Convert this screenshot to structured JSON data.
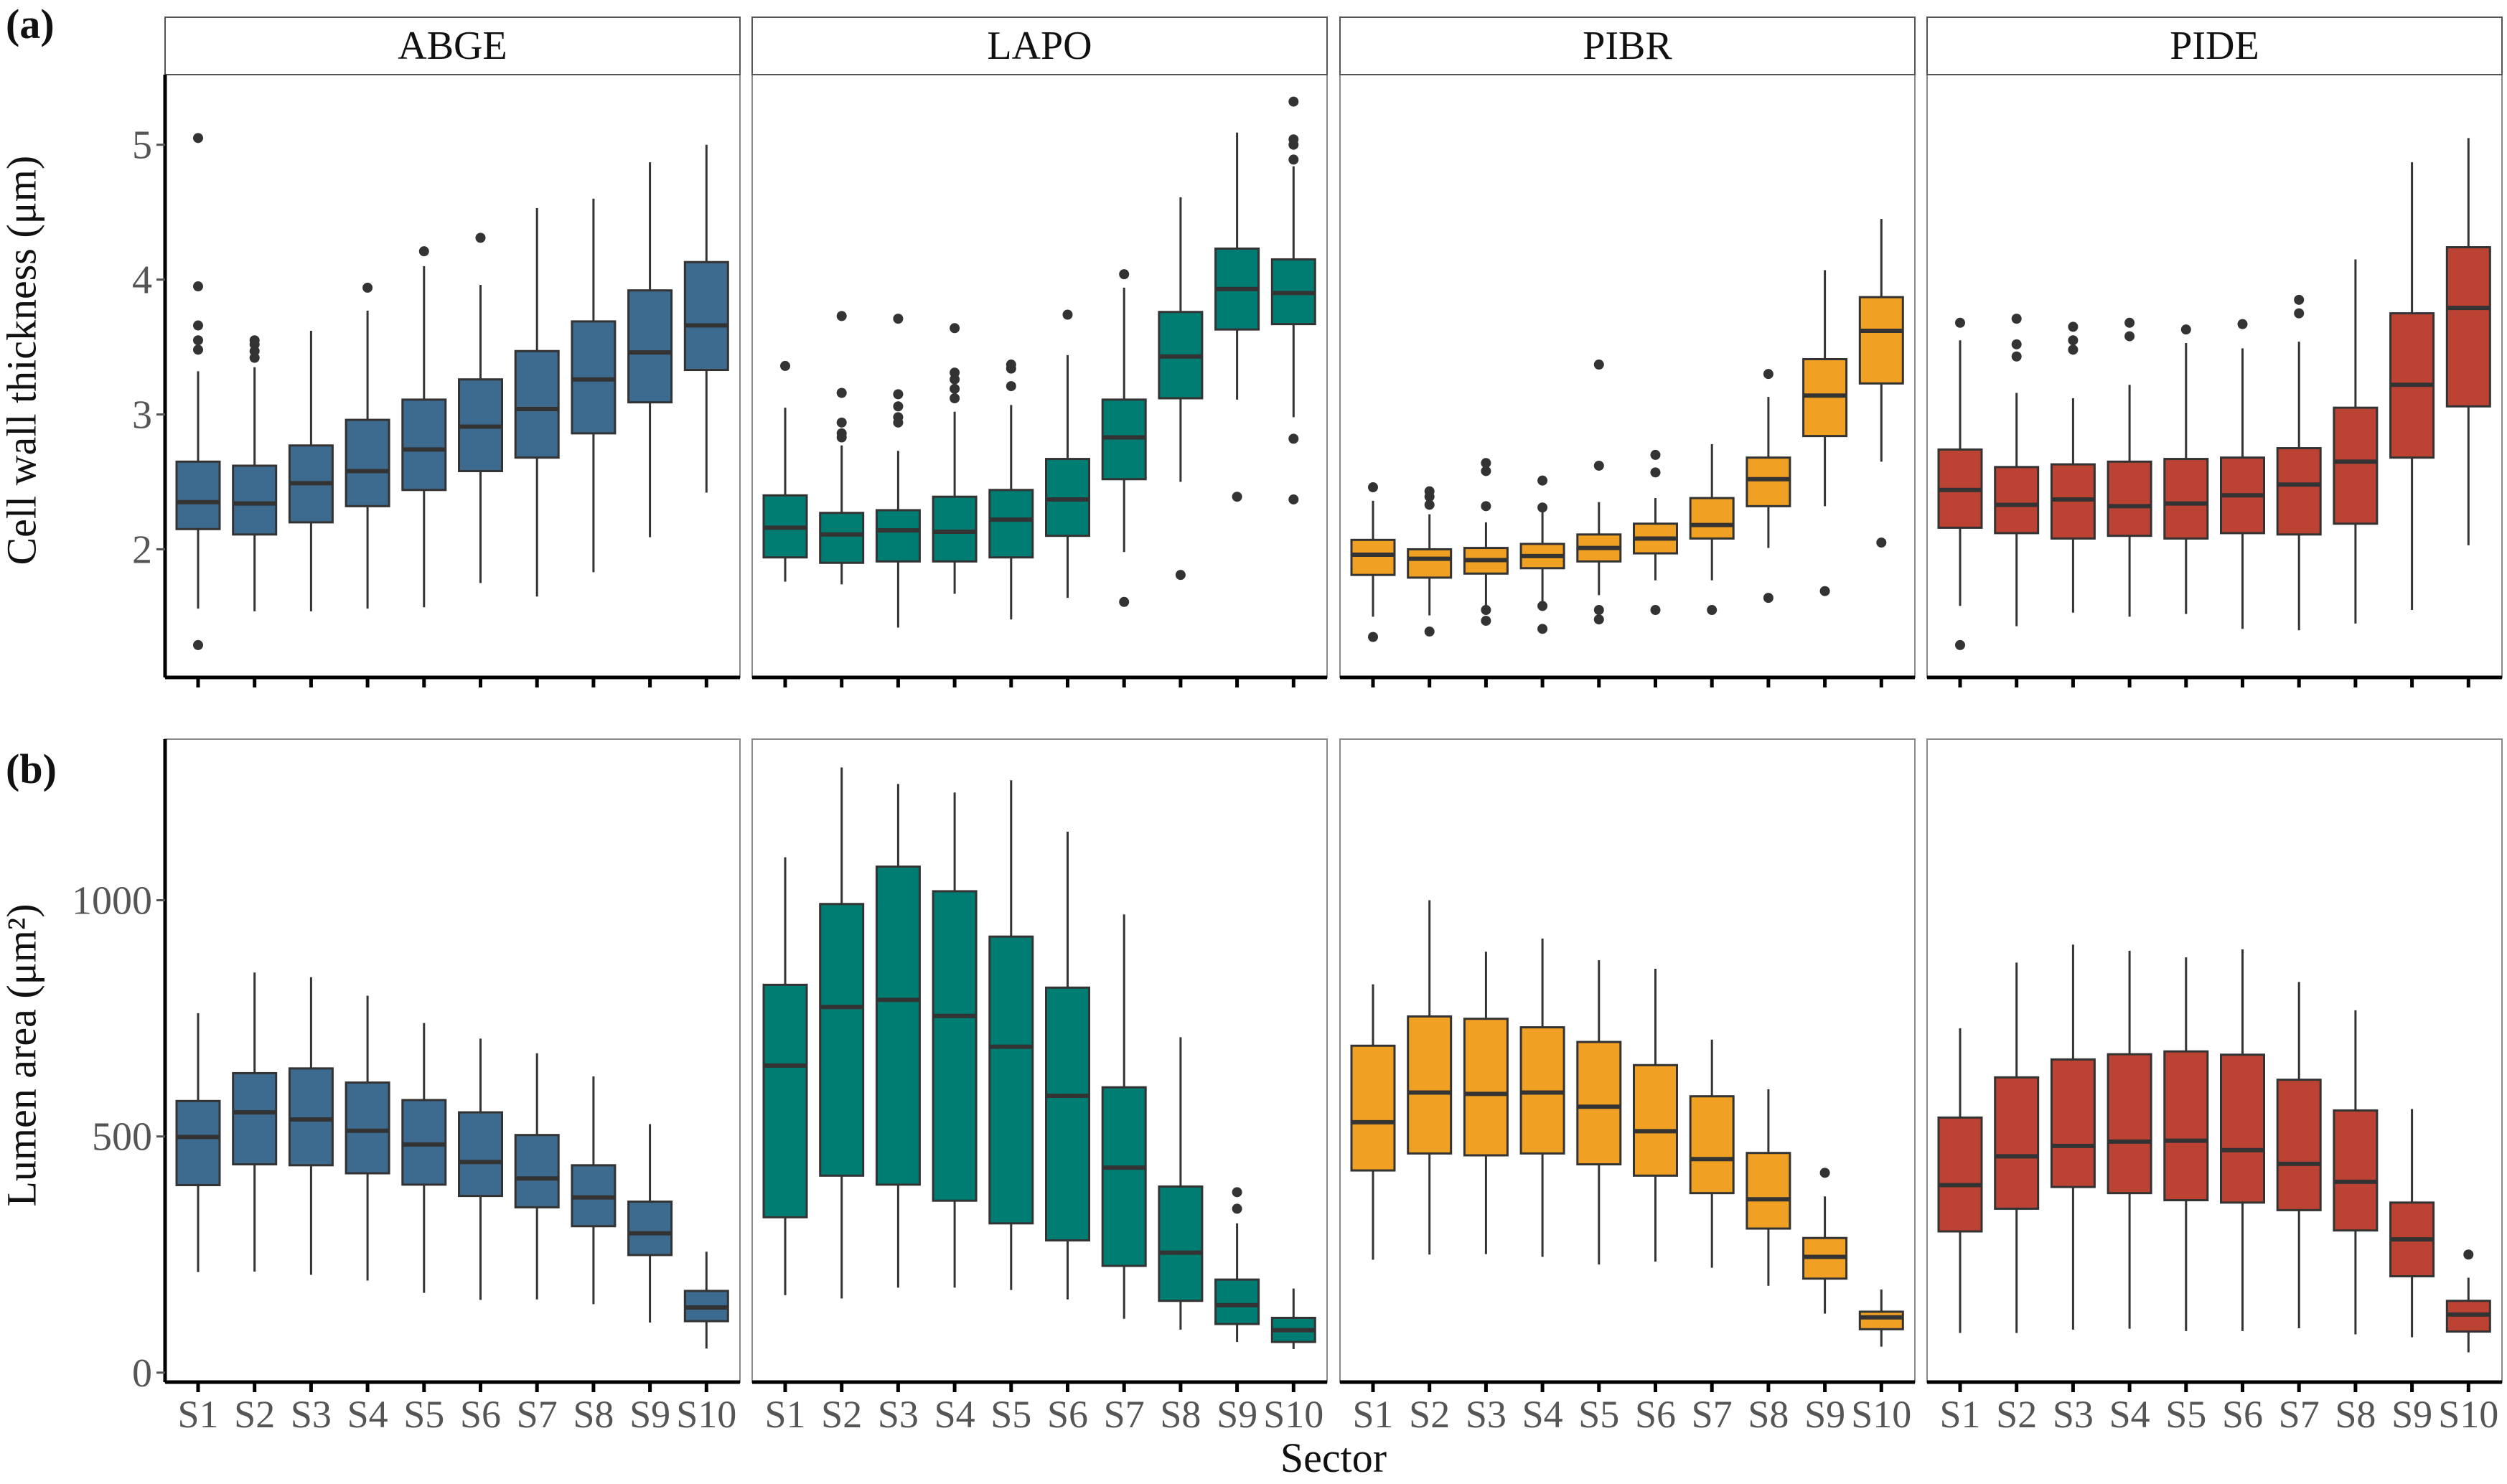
{
  "figure": {
    "panel_labels": [
      "(a)",
      "(b)"
    ],
    "xlabel": "Sector",
    "facets": [
      "ABGE",
      "LAPO",
      "PIBR",
      "PIDE"
    ],
    "colors": {
      "ABGE": "#3D6A8F",
      "LAPO": "#007D72",
      "PIBR": "#F0A023",
      "PIDE": "#BC4334",
      "outline": "#333333",
      "outlier": "#333333"
    }
  },
  "chart_data": [
    {
      "type": "boxplot",
      "panel": "(a)",
      "title": "",
      "xlabel": "",
      "ylabel": "Cell wall thickness (μm)",
      "ylim": [
        1.05,
        5.52
      ],
      "yticks": [
        2,
        3,
        4,
        5
      ],
      "categories": [
        "S1",
        "S2",
        "S3",
        "S4",
        "S5",
        "S6",
        "S7",
        "S8",
        "S9",
        "S10"
      ],
      "facets": [
        {
          "name": "ABGE",
          "boxes": [
            {
              "q1": 2.15,
              "median": 2.35,
              "q3": 2.65,
              "lo": 1.56,
              "hi": 3.32,
              "outliers": [
                5.05,
                3.95,
                3.66,
                3.55,
                3.48,
                1.29
              ]
            },
            {
              "q1": 2.11,
              "median": 2.34,
              "q3": 2.62,
              "lo": 1.54,
              "hi": 3.35,
              "outliers": [
                3.42,
                3.47,
                3.52,
                3.55
              ]
            },
            {
              "q1": 2.2,
              "median": 2.49,
              "q3": 2.77,
              "lo": 1.54,
              "hi": 3.62,
              "outliers": []
            },
            {
              "q1": 2.32,
              "median": 2.58,
              "q3": 2.96,
              "lo": 1.56,
              "hi": 3.77,
              "outliers": [
                3.94
              ]
            },
            {
              "q1": 2.44,
              "median": 2.74,
              "q3": 3.11,
              "lo": 1.57,
              "hi": 4.1,
              "outliers": [
                4.21
              ]
            },
            {
              "q1": 2.58,
              "median": 2.91,
              "q3": 3.26,
              "lo": 1.75,
              "hi": 3.96,
              "outliers": [
                4.31
              ]
            },
            {
              "q1": 2.68,
              "median": 3.04,
              "q3": 3.47,
              "lo": 1.65,
              "hi": 4.53,
              "outliers": []
            },
            {
              "q1": 2.86,
              "median": 3.26,
              "q3": 3.69,
              "lo": 1.83,
              "hi": 4.6,
              "outliers": []
            },
            {
              "q1": 3.09,
              "median": 3.46,
              "q3": 3.92,
              "lo": 2.09,
              "hi": 4.87,
              "outliers": []
            },
            {
              "q1": 3.33,
              "median": 3.66,
              "q3": 4.13,
              "lo": 2.42,
              "hi": 5.0,
              "outliers": []
            }
          ]
        },
        {
          "name": "LAPO",
          "boxes": [
            {
              "q1": 1.94,
              "median": 2.16,
              "q3": 2.4,
              "lo": 1.76,
              "hi": 3.05,
              "outliers": [
                3.36
              ]
            },
            {
              "q1": 1.9,
              "median": 2.11,
              "q3": 2.27,
              "lo": 1.74,
              "hi": 2.77,
              "outliers": [
                3.73,
                3.16,
                2.94,
                2.86,
                2.83
              ]
            },
            {
              "q1": 1.91,
              "median": 2.14,
              "q3": 2.29,
              "lo": 1.42,
              "hi": 2.73,
              "outliers": [
                3.71,
                3.15,
                3.06,
                2.98,
                2.94
              ]
            },
            {
              "q1": 1.91,
              "median": 2.13,
              "q3": 2.39,
              "lo": 1.67,
              "hi": 3.02,
              "outliers": [
                3.64,
                3.31,
                3.26,
                3.19,
                3.12
              ]
            },
            {
              "q1": 1.94,
              "median": 2.22,
              "q3": 2.44,
              "lo": 1.48,
              "hi": 3.07,
              "outliers": [
                3.37,
                3.34,
                3.21
              ]
            },
            {
              "q1": 2.1,
              "median": 2.37,
              "q3": 2.67,
              "lo": 1.64,
              "hi": 3.44,
              "outliers": [
                3.74
              ]
            },
            {
              "q1": 2.52,
              "median": 2.83,
              "q3": 3.11,
              "lo": 1.98,
              "hi": 3.94,
              "outliers": [
                4.04,
                1.61
              ]
            },
            {
              "q1": 3.12,
              "median": 3.43,
              "q3": 3.76,
              "lo": 2.5,
              "hi": 4.61,
              "outliers": [
                1.81
              ]
            },
            {
              "q1": 3.63,
              "median": 3.93,
              "q3": 4.23,
              "lo": 3.11,
              "hi": 5.09,
              "outliers": [
                2.39
              ]
            },
            {
              "q1": 3.67,
              "median": 3.9,
              "q3": 4.15,
              "lo": 2.98,
              "hi": 4.84,
              "outliers": [
                5.32,
                5.04,
                5.0,
                4.89,
                2.82,
                2.37
              ]
            }
          ]
        },
        {
          "name": "PIBR",
          "boxes": [
            {
              "q1": 1.81,
              "median": 1.96,
              "q3": 2.07,
              "lo": 1.5,
              "hi": 2.36,
              "outliers": [
                2.46,
                1.35
              ]
            },
            {
              "q1": 1.79,
              "median": 1.93,
              "q3": 2.0,
              "lo": 1.51,
              "hi": 2.26,
              "outliers": [
                2.43,
                2.39,
                2.33,
                1.39
              ]
            },
            {
              "q1": 1.82,
              "median": 1.92,
              "q3": 2.01,
              "lo": 1.57,
              "hi": 2.2,
              "outliers": [
                2.64,
                2.58,
                2.32,
                1.55,
                1.47
              ]
            },
            {
              "q1": 1.86,
              "median": 1.95,
              "q3": 2.04,
              "lo": 1.59,
              "hi": 2.28,
              "outliers": [
                2.51,
                2.31,
                1.58,
                1.41
              ]
            },
            {
              "q1": 1.91,
              "median": 2.01,
              "q3": 2.11,
              "lo": 1.66,
              "hi": 2.35,
              "outliers": [
                3.37,
                2.62,
                1.55,
                1.48
              ]
            },
            {
              "q1": 1.97,
              "median": 2.08,
              "q3": 2.19,
              "lo": 1.77,
              "hi": 2.38,
              "outliers": [
                2.7,
                2.57,
                1.55
              ]
            },
            {
              "q1": 2.08,
              "median": 2.18,
              "q3": 2.38,
              "lo": 1.77,
              "hi": 2.78,
              "outliers": [
                1.55
              ]
            },
            {
              "q1": 2.32,
              "median": 2.52,
              "q3": 2.68,
              "lo": 2.01,
              "hi": 3.13,
              "outliers": [
                3.3,
                1.64
              ]
            },
            {
              "q1": 2.84,
              "median": 3.14,
              "q3": 3.41,
              "lo": 2.32,
              "hi": 4.07,
              "outliers": [
                1.69
              ]
            },
            {
              "q1": 3.23,
              "median": 3.62,
              "q3": 3.87,
              "lo": 2.65,
              "hi": 4.45,
              "outliers": [
                2.05
              ]
            }
          ]
        },
        {
          "name": "PIDE",
          "boxes": [
            {
              "q1": 2.16,
              "median": 2.44,
              "q3": 2.74,
              "lo": 1.58,
              "hi": 3.55,
              "outliers": [
                3.68,
                1.29
              ]
            },
            {
              "q1": 2.12,
              "median": 2.33,
              "q3": 2.61,
              "lo": 1.43,
              "hi": 3.16,
              "outliers": [
                3.71,
                3.52,
                3.43
              ]
            },
            {
              "q1": 2.08,
              "median": 2.37,
              "q3": 2.63,
              "lo": 1.53,
              "hi": 3.12,
              "outliers": [
                3.65,
                3.55,
                3.48
              ]
            },
            {
              "q1": 2.1,
              "median": 2.32,
              "q3": 2.65,
              "lo": 1.5,
              "hi": 3.22,
              "outliers": [
                3.68,
                3.58
              ]
            },
            {
              "q1": 2.08,
              "median": 2.34,
              "q3": 2.67,
              "lo": 1.52,
              "hi": 3.53,
              "outliers": [
                3.63
              ]
            },
            {
              "q1": 2.12,
              "median": 2.4,
              "q3": 2.68,
              "lo": 1.41,
              "hi": 3.49,
              "outliers": [
                3.67
              ]
            },
            {
              "q1": 2.11,
              "median": 2.48,
              "q3": 2.75,
              "lo": 1.4,
              "hi": 3.54,
              "outliers": [
                3.85,
                3.75
              ]
            },
            {
              "q1": 2.19,
              "median": 2.65,
              "q3": 3.05,
              "lo": 1.45,
              "hi": 4.15,
              "outliers": []
            },
            {
              "q1": 2.68,
              "median": 3.22,
              "q3": 3.75,
              "lo": 1.55,
              "hi": 4.87,
              "outliers": []
            },
            {
              "q1": 3.06,
              "median": 3.79,
              "q3": 4.24,
              "lo": 2.03,
              "hi": 5.05,
              "outliers": []
            }
          ]
        }
      ]
    },
    {
      "type": "boxplot",
      "panel": "(b)",
      "title": "",
      "xlabel": "Sector",
      "ylabel": "Lumen area (μm²)",
      "ylim": [
        -20,
        1341
      ],
      "yticks": [
        0,
        500,
        1000
      ],
      "categories": [
        "S1",
        "S2",
        "S3",
        "S4",
        "S5",
        "S6",
        "S7",
        "S8",
        "S9",
        "S10"
      ],
      "facets": [
        {
          "name": "ABGE",
          "boxes": [
            {
              "q1": 397,
              "median": 499,
              "q3": 575,
              "lo": 213,
              "hi": 761,
              "outliers": []
            },
            {
              "q1": 441,
              "median": 551,
              "q3": 634,
              "lo": 214,
              "hi": 847,
              "outliers": []
            },
            {
              "q1": 439,
              "median": 536,
              "q3": 644,
              "lo": 207,
              "hi": 837,
              "outliers": []
            },
            {
              "q1": 422,
              "median": 512,
              "q3": 614,
              "lo": 195,
              "hi": 798,
              "outliers": []
            },
            {
              "q1": 398,
              "median": 483,
              "q3": 577,
              "lo": 169,
              "hi": 740,
              "outliers": []
            },
            {
              "q1": 374,
              "median": 446,
              "q3": 551,
              "lo": 154,
              "hi": 707,
              "outliers": []
            },
            {
              "q1": 350,
              "median": 411,
              "q3": 503,
              "lo": 155,
              "hi": 676,
              "outliers": []
            },
            {
              "q1": 310,
              "median": 371,
              "q3": 439,
              "lo": 145,
              "hi": 627,
              "outliers": []
            },
            {
              "q1": 249,
              "median": 295,
              "q3": 362,
              "lo": 106,
              "hi": 526,
              "outliers": []
            },
            {
              "q1": 109,
              "median": 138,
              "q3": 173,
              "lo": 51,
              "hi": 256,
              "outliers": []
            }
          ]
        },
        {
          "name": "LAPO",
          "boxes": [
            {
              "q1": 329,
              "median": 650,
              "q3": 821,
              "lo": 164,
              "hi": 1091,
              "outliers": []
            },
            {
              "q1": 417,
              "median": 774,
              "q3": 992,
              "lo": 157,
              "hi": 1281,
              "outliers": []
            },
            {
              "q1": 398,
              "median": 789,
              "q3": 1071,
              "lo": 180,
              "hi": 1246,
              "outliers": []
            },
            {
              "q1": 364,
              "median": 755,
              "q3": 1019,
              "lo": 180,
              "hi": 1228,
              "outliers": []
            },
            {
              "q1": 316,
              "median": 690,
              "q3": 923,
              "lo": 175,
              "hi": 1254,
              "outliers": []
            },
            {
              "q1": 280,
              "median": 586,
              "q3": 815,
              "lo": 155,
              "hi": 1145,
              "outliers": []
            },
            {
              "q1": 226,
              "median": 434,
              "q3": 604,
              "lo": 114,
              "hi": 970,
              "outliers": []
            },
            {
              "q1": 152,
              "median": 254,
              "q3": 394,
              "lo": 91,
              "hi": 710,
              "outliers": []
            },
            {
              "q1": 103,
              "median": 143,
              "q3": 197,
              "lo": 65,
              "hi": 316,
              "outliers": [
                382,
                347
              ]
            },
            {
              "q1": 65,
              "median": 90,
              "q3": 116,
              "lo": 50,
              "hi": 178,
              "outliers": []
            }
          ]
        },
        {
          "name": "PIBR",
          "boxes": [
            {
              "q1": 428,
              "median": 530,
              "q3": 692,
              "lo": 239,
              "hi": 822,
              "outliers": []
            },
            {
              "q1": 464,
              "median": 593,
              "q3": 754,
              "lo": 250,
              "hi": 1000,
              "outliers": []
            },
            {
              "q1": 460,
              "median": 590,
              "q3": 749,
              "lo": 251,
              "hi": 891,
              "outliers": []
            },
            {
              "q1": 464,
              "median": 593,
              "q3": 731,
              "lo": 245,
              "hi": 919,
              "outliers": []
            },
            {
              "q1": 441,
              "median": 563,
              "q3": 700,
              "lo": 229,
              "hi": 873,
              "outliers": []
            },
            {
              "q1": 417,
              "median": 511,
              "q3": 651,
              "lo": 235,
              "hi": 855,
              "outliers": []
            },
            {
              "q1": 380,
              "median": 452,
              "q3": 585,
              "lo": 222,
              "hi": 705,
              "outliers": []
            },
            {
              "q1": 305,
              "median": 367,
              "q3": 465,
              "lo": 184,
              "hi": 600,
              "outliers": []
            },
            {
              "q1": 199,
              "median": 245,
              "q3": 285,
              "lo": 125,
              "hi": 373,
              "outliers": [
                423
              ]
            },
            {
              "q1": 92,
              "median": 117,
              "q3": 129,
              "lo": 55,
              "hi": 176,
              "outliers": []
            }
          ]
        },
        {
          "name": "PIDE",
          "boxes": [
            {
              "q1": 299,
              "median": 397,
              "q3": 540,
              "lo": 84,
              "hi": 729,
              "outliers": []
            },
            {
              "q1": 347,
              "median": 458,
              "q3": 625,
              "lo": 84,
              "hi": 868,
              "outliers": []
            },
            {
              "q1": 393,
              "median": 480,
              "q3": 663,
              "lo": 91,
              "hi": 906,
              "outliers": []
            },
            {
              "q1": 380,
              "median": 489,
              "q3": 674,
              "lo": 93,
              "hi": 893,
              "outliers": []
            },
            {
              "q1": 365,
              "median": 491,
              "q3": 680,
              "lo": 88,
              "hi": 879,
              "outliers": []
            },
            {
              "q1": 360,
              "median": 471,
              "q3": 673,
              "lo": 88,
              "hi": 896,
              "outliers": []
            },
            {
              "q1": 344,
              "median": 442,
              "q3": 620,
              "lo": 94,
              "hi": 827,
              "outliers": []
            },
            {
              "q1": 301,
              "median": 404,
              "q3": 555,
              "lo": 81,
              "hi": 767,
              "outliers": []
            },
            {
              "q1": 204,
              "median": 282,
              "q3": 360,
              "lo": 75,
              "hi": 558,
              "outliers": []
            },
            {
              "q1": 87,
              "median": 123,
              "q3": 152,
              "lo": 43,
              "hi": 201,
              "outliers": [
                250
              ]
            }
          ]
        }
      ]
    }
  ]
}
